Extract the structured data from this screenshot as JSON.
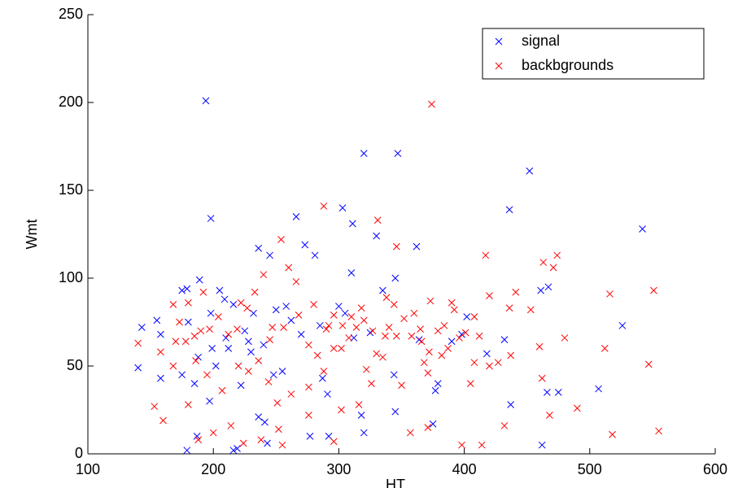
{
  "chart_data": {
    "type": "scatter",
    "x_label": "HT",
    "y_label": "Wmt",
    "xlim": [
      100,
      600
    ],
    "ylim": [
      0,
      250
    ],
    "xticks": [
      100,
      200,
      300,
      400,
      500,
      600
    ],
    "yticks": [
      0,
      50,
      100,
      150,
      200,
      250
    ],
    "legend_position": "upper right",
    "series": [
      {
        "name": "signal",
        "color": "#0000ff",
        "x": [
          194,
          198,
          320,
          347,
          452,
          436,
          542,
          303,
          311,
          266,
          330,
          362,
          526,
          507,
          462,
          466,
          475,
          461,
          467,
          437,
          432,
          418,
          375,
          379,
          377,
          398,
          402,
          390,
          364,
          345,
          344,
          320,
          318,
          325,
          335,
          345,
          292,
          277,
          287,
          291,
          243,
          241,
          236,
          216,
          219,
          179,
          187,
          197,
          140,
          143,
          155,
          158,
          158,
          175,
          179,
          189,
          198,
          205,
          209,
          199,
          202,
          210,
          216,
          225,
          232,
          236,
          245,
          250,
          258,
          262,
          273,
          281,
          305,
          310,
          312,
          300,
          285,
          270,
          255,
          248,
          230,
          222,
          185,
          188,
          212,
          228,
          240,
          175,
          180
        ],
        "values": [
          201,
          134,
          171,
          171,
          161,
          139,
          128,
          140,
          131,
          135,
          124,
          118,
          73,
          37,
          5,
          35,
          35,
          93,
          95,
          28,
          65,
          57,
          17,
          40,
          36,
          68,
          78,
          64,
          65,
          24,
          45,
          12,
          22,
          69,
          93,
          100,
          10,
          10,
          43,
          34,
          6,
          18,
          21,
          2,
          3,
          2,
          10,
          30,
          49,
          72,
          76,
          43,
          68,
          93,
          94,
          99,
          80,
          93,
          88,
          60,
          50,
          66,
          85,
          70,
          80,
          117,
          113,
          82,
          84,
          76,
          119,
          113,
          80,
          103,
          66,
          84,
          73,
          68,
          47,
          45,
          58,
          39,
          40,
          55,
          60,
          64,
          62,
          45,
          75
        ]
      },
      {
        "name": "backbgrounds",
        "color": "#ff0000",
        "x": [
          374,
          288,
          331,
          346,
          417,
          463,
          474,
          471,
          480,
          490,
          512,
          516,
          551,
          547,
          518,
          555,
          462,
          468,
          460,
          436,
          453,
          441,
          420,
          412,
          408,
          408,
          398,
          414,
          432,
          371,
          357,
          373,
          390,
          371,
          368,
          350,
          346,
          337,
          335,
          326,
          316,
          302,
          296,
          276,
          255,
          252,
          238,
          224,
          214,
          200,
          188,
          180,
          160,
          153,
          140,
          158,
          168,
          170,
          185,
          190,
          197,
          204,
          212,
          219,
          227,
          233,
          240,
          247,
          254,
          260,
          266,
          276,
          283,
          290,
          296,
          303,
          310,
          318,
          327,
          338,
          358,
          365,
          382,
          392,
          396,
          401,
          420,
          427,
          437,
          405,
          387,
          344,
          330,
          322,
          302,
          288,
          276,
          262,
          251,
          244,
          236,
          228,
          220,
          207,
          195,
          186,
          178,
          173,
          168,
          180,
          192,
          222,
          245,
          256,
          268,
          280,
          292,
          296,
          308,
          314,
          320,
          340,
          352,
          360,
          366,
          372,
          379,
          384
        ],
        "values": [
          199,
          141,
          133,
          118,
          113,
          109,
          113,
          106,
          66,
          26,
          60,
          91,
          93,
          51,
          11,
          13,
          43,
          22,
          61,
          83,
          82,
          92,
          90,
          67,
          78,
          52,
          5,
          5,
          16,
          15,
          12,
          87,
          86,
          46,
          52,
          39,
          67,
          67,
          55,
          40,
          28,
          25,
          7,
          22,
          5,
          14,
          8,
          6,
          16,
          12,
          8,
          28,
          19,
          27,
          63,
          58,
          50,
          64,
          67,
          70,
          71,
          78,
          68,
          71,
          83,
          92,
          102,
          72,
          122,
          106,
          98,
          62,
          56,
          71,
          79,
          73,
          78,
          83,
          70,
          89,
          67,
          71,
          56,
          82,
          66,
          69,
          50,
          52,
          56,
          40,
          60,
          85,
          57,
          48,
          60,
          47,
          38,
          34,
          29,
          41,
          53,
          47,
          50,
          36,
          45,
          53,
          64,
          75,
          85,
          86,
          92,
          86,
          65,
          72,
          79,
          85,
          73,
          60,
          66,
          72,
          76,
          72,
          77,
          80,
          64,
          58,
          70,
          73
        ]
      }
    ]
  }
}
